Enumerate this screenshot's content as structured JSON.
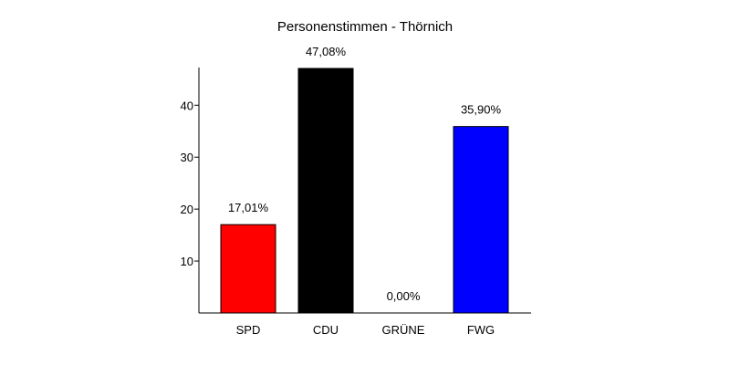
{
  "chart_data": {
    "type": "bar",
    "title": "Personenstimmen - Thörnich",
    "xlabel": "",
    "ylabel": "",
    "categories": [
      "SPD",
      "CDU",
      "GRÜNE",
      "FWG"
    ],
    "values": [
      17.01,
      47.08,
      0.0,
      35.9
    ],
    "value_labels": [
      "17,01%",
      "47,08%",
      "0,00%",
      "35,90%"
    ],
    "colors": [
      "#ff0000",
      "#000000",
      "#00a000",
      "#0000ff"
    ],
    "ylim": [
      0,
      47.08
    ],
    "yticks": [
      10,
      20,
      30,
      40
    ],
    "ytick_labels": [
      "10",
      "20",
      "30",
      "40"
    ],
    "grid": false,
    "legend": "none"
  }
}
